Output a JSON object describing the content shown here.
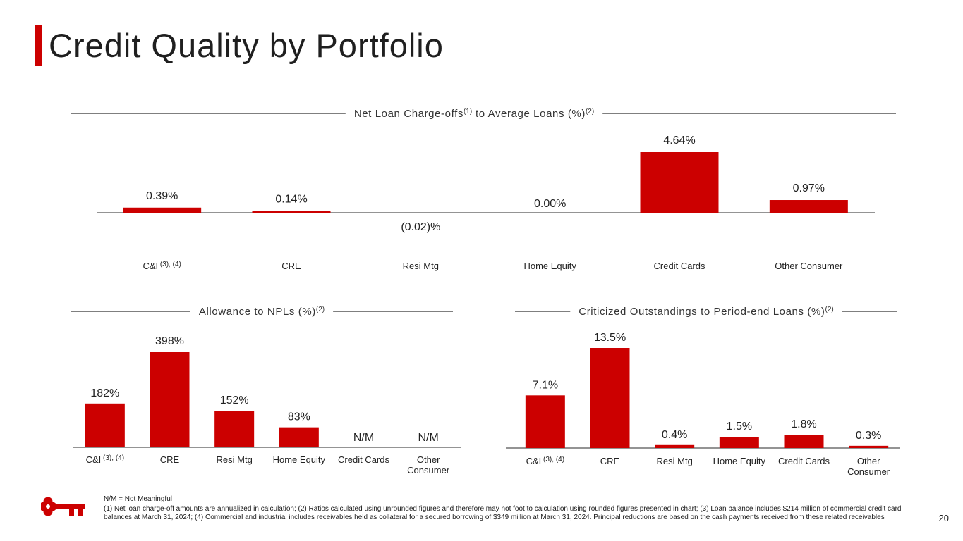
{
  "page": {
    "title": "Credit Quality by Portfolio",
    "page_number": "20",
    "nm_note": "N/M = Not Meaningful",
    "footnote": "(1) Net loan charge-off amounts are annualized in calculation; (2) Ratios calculated using unrounded figures and therefore may not foot to calculation using rounded figures presented in chart; (3) Loan balance includes $214 million of commercial credit card balances at March 31, 2024; (4) Commercial and industrial includes receivables held as collateral for a secured borrowing of $349 million at March 31, 2024. Principal reductions are based on the cash payments received from these related receivables",
    "accent_color": "#cc0000"
  },
  "chart_data": [
    {
      "id": "ncos",
      "type": "bar",
      "title": "Net Loan Charge-offs",
      "title_sup1": "(1)",
      "title_mid": " to Average Loans (%)",
      "title_sup2": "(2)",
      "categories": [
        "C&I",
        "CRE",
        "Resi Mtg",
        "Home Equity",
        "Credit Cards",
        "Other Consumer"
      ],
      "category_sups": [
        "(3), (4)",
        "",
        "",
        "",
        "",
        ""
      ],
      "values": [
        0.39,
        0.14,
        -0.02,
        0.0,
        4.64,
        0.97
      ],
      "labels": [
        "0.39%",
        "0.14%",
        "(0.02)%",
        "0.00%",
        "4.64%",
        "0.97%"
      ],
      "ylim": [
        -0.5,
        4.64
      ],
      "color": "#cc0000"
    },
    {
      "id": "allowance",
      "type": "bar",
      "title": "Allowance to NPLs (%)",
      "title_sup2": "(2)",
      "categories": [
        "C&I",
        "CRE",
        "Resi Mtg",
        "Home Equity",
        "Credit Cards",
        "Other Consumer"
      ],
      "category_lines": [
        [
          "C&I"
        ],
        [
          "CRE"
        ],
        [
          "Resi Mtg"
        ],
        [
          "Home Equity"
        ],
        [
          "Credit Cards"
        ],
        [
          "Other",
          "Consumer"
        ]
      ],
      "category_sups": [
        "(3), (4)",
        "",
        "",
        "",
        "",
        ""
      ],
      "values": [
        182,
        398,
        152,
        83,
        null,
        null
      ],
      "labels": [
        "182%",
        "398%",
        "152%",
        "83%",
        "N/M",
        "N/M"
      ],
      "ylim": [
        0,
        398
      ],
      "color": "#cc0000"
    },
    {
      "id": "criticized",
      "type": "bar",
      "title": "Criticized Outstandings to Period-end Loans (%)",
      "title_sup2": "(2)",
      "categories": [
        "C&I",
        "CRE",
        "Resi Mtg",
        "Home Equity",
        "Credit Cards",
        "Other Consumer"
      ],
      "category_lines": [
        [
          "C&I"
        ],
        [
          "CRE"
        ],
        [
          "Resi Mtg"
        ],
        [
          "Home Equity"
        ],
        [
          "Credit Cards"
        ],
        [
          "Other",
          "Consumer"
        ]
      ],
      "category_sups": [
        "(3), (4)",
        "",
        "",
        "",
        "",
        ""
      ],
      "values": [
        7.1,
        13.5,
        0.4,
        1.5,
        1.8,
        0.3
      ],
      "labels": [
        "7.1%",
        "13.5%",
        "0.4%",
        "1.5%",
        "1.8%",
        "0.3%"
      ],
      "ylim": [
        0,
        13.5
      ],
      "color": "#cc0000"
    }
  ]
}
